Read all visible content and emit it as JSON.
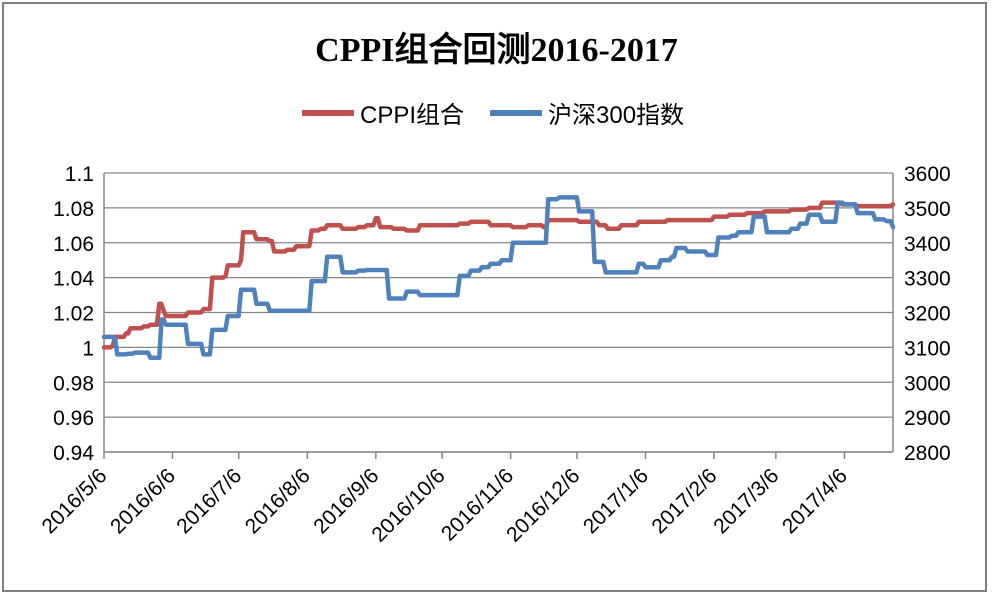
{
  "chart_data": {
    "type": "line",
    "title": "CPPI组合回测2016-2017",
    "x_tick_labels": [
      "2016/5/6",
      "2016/6/6",
      "2016/7/6",
      "2016/8/6",
      "2016/9/6",
      "2016/10/6",
      "2016/11/6",
      "2016/12/6",
      "2017/1/6",
      "2017/2/6",
      "2017/3/6",
      "2017/4/6"
    ],
    "y_left": {
      "min": 0.94,
      "max": 1.1,
      "step": 0.02,
      "ticks": [
        "0.94",
        "0.96",
        "0.98",
        "1",
        "1.02",
        "1.04",
        "1.06",
        "1.08",
        "1.1"
      ]
    },
    "y_right": {
      "min": 2800,
      "max": 3600,
      "step": 100,
      "ticks": [
        "2800",
        "2900",
        "3000",
        "3100",
        "3200",
        "3300",
        "3400",
        "3500",
        "3600"
      ]
    },
    "grid": true,
    "legend_position": "top",
    "series": [
      {
        "name": "CPPI组合",
        "axis": "left",
        "color": "#c0504d",
        "points": [
          [
            "2016-05-06",
            1.0
          ],
          [
            "2016-05-10",
            1.001
          ],
          [
            "2016-05-11",
            1.006
          ],
          [
            "2016-05-16",
            1.008
          ],
          [
            "2016-05-18",
            1.011
          ],
          [
            "2016-05-24",
            1.012
          ],
          [
            "2016-05-27",
            1.013
          ],
          [
            "2016-05-31",
            1.025
          ],
          [
            "2016-06-02",
            1.021
          ],
          [
            "2016-06-03",
            1.018
          ],
          [
            "2016-06-13",
            1.02
          ],
          [
            "2016-06-20",
            1.022
          ],
          [
            "2016-06-24",
            1.04
          ],
          [
            "2016-06-30",
            1.041
          ],
          [
            "2016-07-01",
            1.047
          ],
          [
            "2016-07-07",
            1.05
          ],
          [
            "2016-07-08",
            1.066
          ],
          [
            "2016-07-14",
            1.062
          ],
          [
            "2016-07-20",
            1.061
          ],
          [
            "2016-07-22",
            1.055
          ],
          [
            "2016-07-28",
            1.056
          ],
          [
            "2016-08-01",
            1.058
          ],
          [
            "2016-08-05",
            1.058
          ],
          [
            "2016-08-08",
            1.067
          ],
          [
            "2016-08-12",
            1.068
          ],
          [
            "2016-08-15",
            1.07
          ],
          [
            "2016-08-22",
            1.068
          ],
          [
            "2016-08-29",
            1.069
          ],
          [
            "2016-09-02",
            1.07
          ],
          [
            "2016-09-06",
            1.074
          ],
          [
            "2016-09-08",
            1.069
          ],
          [
            "2016-09-14",
            1.068
          ],
          [
            "2016-09-20",
            1.067
          ],
          [
            "2016-09-26",
            1.07
          ],
          [
            "2016-10-10",
            1.07
          ],
          [
            "2016-10-14",
            1.071
          ],
          [
            "2016-10-19",
            1.072
          ],
          [
            "2016-10-25",
            1.072
          ],
          [
            "2016-10-28",
            1.07
          ],
          [
            "2016-11-07",
            1.069
          ],
          [
            "2016-11-14",
            1.07
          ],
          [
            "2016-11-21",
            1.069
          ],
          [
            "2016-11-23",
            1.073
          ],
          [
            "2016-12-07",
            1.072
          ],
          [
            "2016-12-16",
            1.07
          ],
          [
            "2016-12-20",
            1.068
          ],
          [
            "2016-12-26",
            1.07
          ],
          [
            "2017-01-03",
            1.072
          ],
          [
            "2017-01-16",
            1.073
          ],
          [
            "2017-02-02",
            1.073
          ],
          [
            "2017-02-06",
            1.075
          ],
          [
            "2017-02-13",
            1.076
          ],
          [
            "2017-02-21",
            1.077
          ],
          [
            "2017-03-01",
            1.078
          ],
          [
            "2017-03-13",
            1.079
          ],
          [
            "2017-03-21",
            1.08
          ],
          [
            "2017-03-27",
            1.083
          ],
          [
            "2017-04-05",
            1.082
          ],
          [
            "2017-04-12",
            1.081
          ],
          [
            "2017-04-19",
            1.081
          ],
          [
            "2017-04-28",
            1.082
          ]
        ]
      },
      {
        "name": "沪深300指数",
        "axis": "right",
        "color": "#4f81bd",
        "points": [
          [
            "2016-05-06",
            3130
          ],
          [
            "2016-05-11",
            3125
          ],
          [
            "2016-05-12",
            3080
          ],
          [
            "2016-05-17",
            3082
          ],
          [
            "2016-05-20",
            3085
          ],
          [
            "2016-05-27",
            3070
          ],
          [
            "2016-05-31",
            3070
          ],
          [
            "2016-06-01",
            3180
          ],
          [
            "2016-06-03",
            3165
          ],
          [
            "2016-06-13",
            3110
          ],
          [
            "2016-06-20",
            3080
          ],
          [
            "2016-06-24",
            3150
          ],
          [
            "2016-07-01",
            3190
          ],
          [
            "2016-07-07",
            3265
          ],
          [
            "2016-07-14",
            3225
          ],
          [
            "2016-07-20",
            3205
          ],
          [
            "2016-08-01",
            3205
          ],
          [
            "2016-08-08",
            3290
          ],
          [
            "2016-08-15",
            3360
          ],
          [
            "2016-08-22",
            3315
          ],
          [
            "2016-08-29",
            3320
          ],
          [
            "2016-09-02",
            3322
          ],
          [
            "2016-09-07",
            3322
          ],
          [
            "2016-09-12",
            3240
          ],
          [
            "2016-09-20",
            3260
          ],
          [
            "2016-09-26",
            3250
          ],
          [
            "2016-10-10",
            3250
          ],
          [
            "2016-10-14",
            3305
          ],
          [
            "2016-10-19",
            3320
          ],
          [
            "2016-10-24",
            3330
          ],
          [
            "2016-10-28",
            3340
          ],
          [
            "2016-11-02",
            3350
          ],
          [
            "2016-11-07",
            3400
          ],
          [
            "2016-11-14",
            3400
          ],
          [
            "2016-11-23",
            3525
          ],
          [
            "2016-11-28",
            3530
          ],
          [
            "2016-12-05",
            3530
          ],
          [
            "2016-12-07",
            3490
          ],
          [
            "2016-12-12",
            3490
          ],
          [
            "2016-12-14",
            3345
          ],
          [
            "2016-12-19",
            3315
          ],
          [
            "2016-12-26",
            3315
          ],
          [
            "2017-01-03",
            3340
          ],
          [
            "2017-01-06",
            3330
          ],
          [
            "2017-01-13",
            3350
          ],
          [
            "2017-01-18",
            3360
          ],
          [
            "2017-01-20",
            3385
          ],
          [
            "2017-01-25",
            3375
          ],
          [
            "2017-02-01",
            3375
          ],
          [
            "2017-02-03",
            3365
          ],
          [
            "2017-02-08",
            3415
          ],
          [
            "2017-02-14",
            3420
          ],
          [
            "2017-02-17",
            3430
          ],
          [
            "2017-02-24",
            3475
          ],
          [
            "2017-03-02",
            3430
          ],
          [
            "2017-03-09",
            3430
          ],
          [
            "2017-03-13",
            3440
          ],
          [
            "2017-03-17",
            3455
          ],
          [
            "2017-03-21",
            3480
          ],
          [
            "2017-03-27",
            3460
          ],
          [
            "2017-04-03",
            3515
          ],
          [
            "2017-04-06",
            3510
          ],
          [
            "2017-04-12",
            3485
          ],
          [
            "2017-04-20",
            3467
          ],
          [
            "2017-04-25",
            3462
          ],
          [
            "2017-04-28",
            3445
          ]
        ]
      }
    ]
  }
}
